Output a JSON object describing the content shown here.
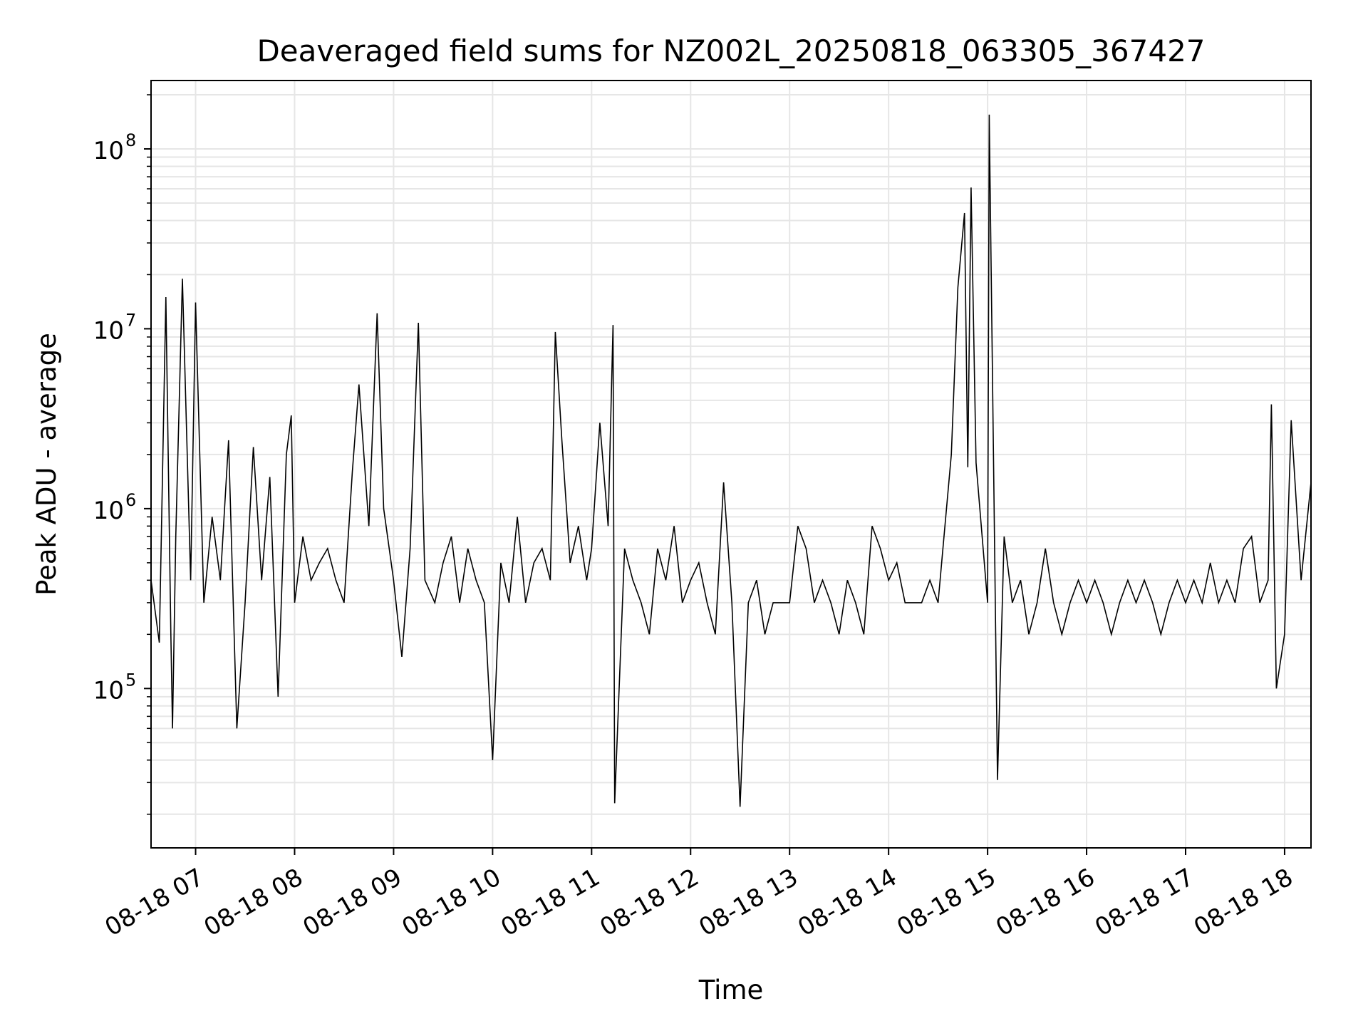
{
  "chart_data": {
    "type": "line",
    "title": "Deaveraged field sums for NZ002L_20250818_063305_367427",
    "xlabel": "Time",
    "ylabel": "Peak ADU - average",
    "yscale": "log",
    "ylim": [
      13000,
      240000000
    ],
    "xlim": [
      "2025-08-18 06:33",
      "2025-08-18 18:16"
    ],
    "grid": true,
    "line_color": "#000000",
    "grid_color": "#e6e6e6",
    "x_ticks": [
      {
        "value": "2025-08-18 07:00",
        "label": "08-18 07"
      },
      {
        "value": "2025-08-18 08:00",
        "label": "08-18 08"
      },
      {
        "value": "2025-08-18 09:00",
        "label": "08-18 09"
      },
      {
        "value": "2025-08-18 10:00",
        "label": "08-18 10"
      },
      {
        "value": "2025-08-18 11:00",
        "label": "08-18 11"
      },
      {
        "value": "2025-08-18 12:00",
        "label": "08-18 12"
      },
      {
        "value": "2025-08-18 13:00",
        "label": "08-18 13"
      },
      {
        "value": "2025-08-18 14:00",
        "label": "08-18 14"
      },
      {
        "value": "2025-08-18 15:00",
        "label": "08-18 15"
      },
      {
        "value": "2025-08-18 16:00",
        "label": "08-18 16"
      },
      {
        "value": "2025-08-18 17:00",
        "label": "08-18 17"
      },
      {
        "value": "2025-08-18 18:00",
        "label": "08-18 18"
      }
    ],
    "y_ticks": [
      {
        "value": 100000,
        "base": "10",
        "exp": "5"
      },
      {
        "value": 1000000,
        "base": "10",
        "exp": "6"
      },
      {
        "value": 10000000,
        "base": "10",
        "exp": "7"
      },
      {
        "value": 100000000,
        "base": "10",
        "exp": "8"
      }
    ],
    "series": [
      {
        "x": [
          "2025-08-18 06:33",
          "2025-08-18 06:38",
          "2025-08-18 06:42",
          "2025-08-18 06:45",
          "2025-08-18 06:46",
          "2025-08-18 06:48",
          "2025-08-18 06:52",
          "2025-08-18 06:57",
          "2025-08-18 07:00",
          "2025-08-18 07:05",
          "2025-08-18 07:10",
          "2025-08-18 07:15",
          "2025-08-18 07:20",
          "2025-08-18 07:25",
          "2025-08-18 07:30",
          "2025-08-18 07:35",
          "2025-08-18 07:40",
          "2025-08-18 07:45",
          "2025-08-18 07:50",
          "2025-08-18 07:55",
          "2025-08-18 07:58",
          "2025-08-18 08:00",
          "2025-08-18 08:05",
          "2025-08-18 08:10",
          "2025-08-18 08:15",
          "2025-08-18 08:20",
          "2025-08-18 08:25",
          "2025-08-18 08:30",
          "2025-08-18 08:35",
          "2025-08-18 08:39",
          "2025-08-18 08:45",
          "2025-08-18 08:50",
          "2025-08-18 08:54",
          "2025-08-18 09:00",
          "2025-08-18 09:05",
          "2025-08-18 09:10",
          "2025-08-18 09:15",
          "2025-08-18 09:19",
          "2025-08-18 09:25",
          "2025-08-18 09:30",
          "2025-08-18 09:35",
          "2025-08-18 09:40",
          "2025-08-18 09:45",
          "2025-08-18 09:50",
          "2025-08-18 09:55",
          "2025-08-18 10:00",
          "2025-08-18 10:05",
          "2025-08-18 10:10",
          "2025-08-18 10:15",
          "2025-08-18 10:20",
          "2025-08-18 10:25",
          "2025-08-18 10:30",
          "2025-08-18 10:35",
          "2025-08-18 10:38",
          "2025-08-18 10:42",
          "2025-08-18 10:47",
          "2025-08-18 10:52",
          "2025-08-18 10:57",
          "2025-08-18 11:00",
          "2025-08-18 11:05",
          "2025-08-18 11:10",
          "2025-08-18 11:13",
          "2025-08-18 11:14",
          "2025-08-18 11:20",
          "2025-08-18 11:25",
          "2025-08-18 11:30",
          "2025-08-18 11:35",
          "2025-08-18 11:40",
          "2025-08-18 11:45",
          "2025-08-18 11:50",
          "2025-08-18 11:55",
          "2025-08-18 12:00",
          "2025-08-18 12:05",
          "2025-08-18 12:10",
          "2025-08-18 12:15",
          "2025-08-18 12:20",
          "2025-08-18 12:25",
          "2025-08-18 12:30",
          "2025-08-18 12:35",
          "2025-08-18 12:40",
          "2025-08-18 12:45",
          "2025-08-18 12:50",
          "2025-08-18 12:55",
          "2025-08-18 13:00",
          "2025-08-18 13:05",
          "2025-08-18 13:10",
          "2025-08-18 13:15",
          "2025-08-18 13:20",
          "2025-08-18 13:25",
          "2025-08-18 13:30",
          "2025-08-18 13:35",
          "2025-08-18 13:40",
          "2025-08-18 13:45",
          "2025-08-18 13:50",
          "2025-08-18 13:55",
          "2025-08-18 14:00",
          "2025-08-18 14:05",
          "2025-08-18 14:10",
          "2025-08-18 14:15",
          "2025-08-18 14:20",
          "2025-08-18 14:25",
          "2025-08-18 14:30",
          "2025-08-18 14:38",
          "2025-08-18 14:42",
          "2025-08-18 14:46",
          "2025-08-18 14:48",
          "2025-08-18 14:50",
          "2025-08-18 14:53",
          "2025-08-18 15:00",
          "2025-08-18 15:01",
          "2025-08-18 15:06",
          "2025-08-18 15:10",
          "2025-08-18 15:15",
          "2025-08-18 15:20",
          "2025-08-18 15:25",
          "2025-08-18 15:30",
          "2025-08-18 15:35",
          "2025-08-18 15:40",
          "2025-08-18 15:45",
          "2025-08-18 15:50",
          "2025-08-18 15:55",
          "2025-08-18 16:00",
          "2025-08-18 16:05",
          "2025-08-18 16:10",
          "2025-08-18 16:15",
          "2025-08-18 16:20",
          "2025-08-18 16:25",
          "2025-08-18 16:30",
          "2025-08-18 16:35",
          "2025-08-18 16:40",
          "2025-08-18 16:45",
          "2025-08-18 16:50",
          "2025-08-18 16:55",
          "2025-08-18 17:00",
          "2025-08-18 17:05",
          "2025-08-18 17:10",
          "2025-08-18 17:15",
          "2025-08-18 17:20",
          "2025-08-18 17:25",
          "2025-08-18 17:30",
          "2025-08-18 17:35",
          "2025-08-18 17:40",
          "2025-08-18 17:45",
          "2025-08-18 17:50",
          "2025-08-18 17:52",
          "2025-08-18 17:55",
          "2025-08-18 18:00",
          "2025-08-18 18:04",
          "2025-08-18 18:10",
          "2025-08-18 18:16"
        ],
        "y": [
          400000,
          180000,
          15000000,
          200000,
          60000,
          700000,
          19000000,
          400000,
          14000000,
          300000,
          900000,
          400000,
          2400000,
          60000,
          300000,
          2200000,
          400000,
          1500000,
          90000,
          2000000,
          3300000,
          300000,
          700000,
          400000,
          500000,
          600000,
          400000,
          300000,
          1600000,
          4900000,
          800000,
          12200000,
          1000000,
          400000,
          150000,
          600000,
          10800000,
          400000,
          300000,
          500000,
          700000,
          300000,
          600000,
          400000,
          300000,
          40000,
          500000,
          300000,
          900000,
          300000,
          500000,
          600000,
          400000,
          9600000,
          2400000,
          500000,
          800000,
          400000,
          600000,
          3000000,
          800000,
          10500000,
          23000,
          600000,
          400000,
          300000,
          200000,
          600000,
          400000,
          800000,
          300000,
          400000,
          500000,
          300000,
          200000,
          1400000,
          300000,
          22000,
          300000,
          400000,
          200000,
          300000,
          300000,
          300000,
          800000,
          600000,
          300000,
          400000,
          300000,
          200000,
          400000,
          300000,
          200000,
          800000,
          600000,
          400000,
          500000,
          300000,
          300000,
          300000,
          400000,
          300000,
          2000000,
          17000000,
          44000000,
          1700000,
          61000000,
          1800000,
          300000,
          155000000,
          31000,
          700000,
          300000,
          400000,
          200000,
          300000,
          600000,
          300000,
          200000,
          300000,
          400000,
          300000,
          400000,
          300000,
          200000,
          300000,
          400000,
          300000,
          400000,
          300000,
          200000,
          300000,
          400000,
          300000,
          400000,
          300000,
          500000,
          300000,
          400000,
          300000,
          600000,
          700000,
          300000,
          400000,
          3800000,
          100000,
          200000,
          3100000,
          400000,
          1400000
        ]
      }
    ]
  }
}
